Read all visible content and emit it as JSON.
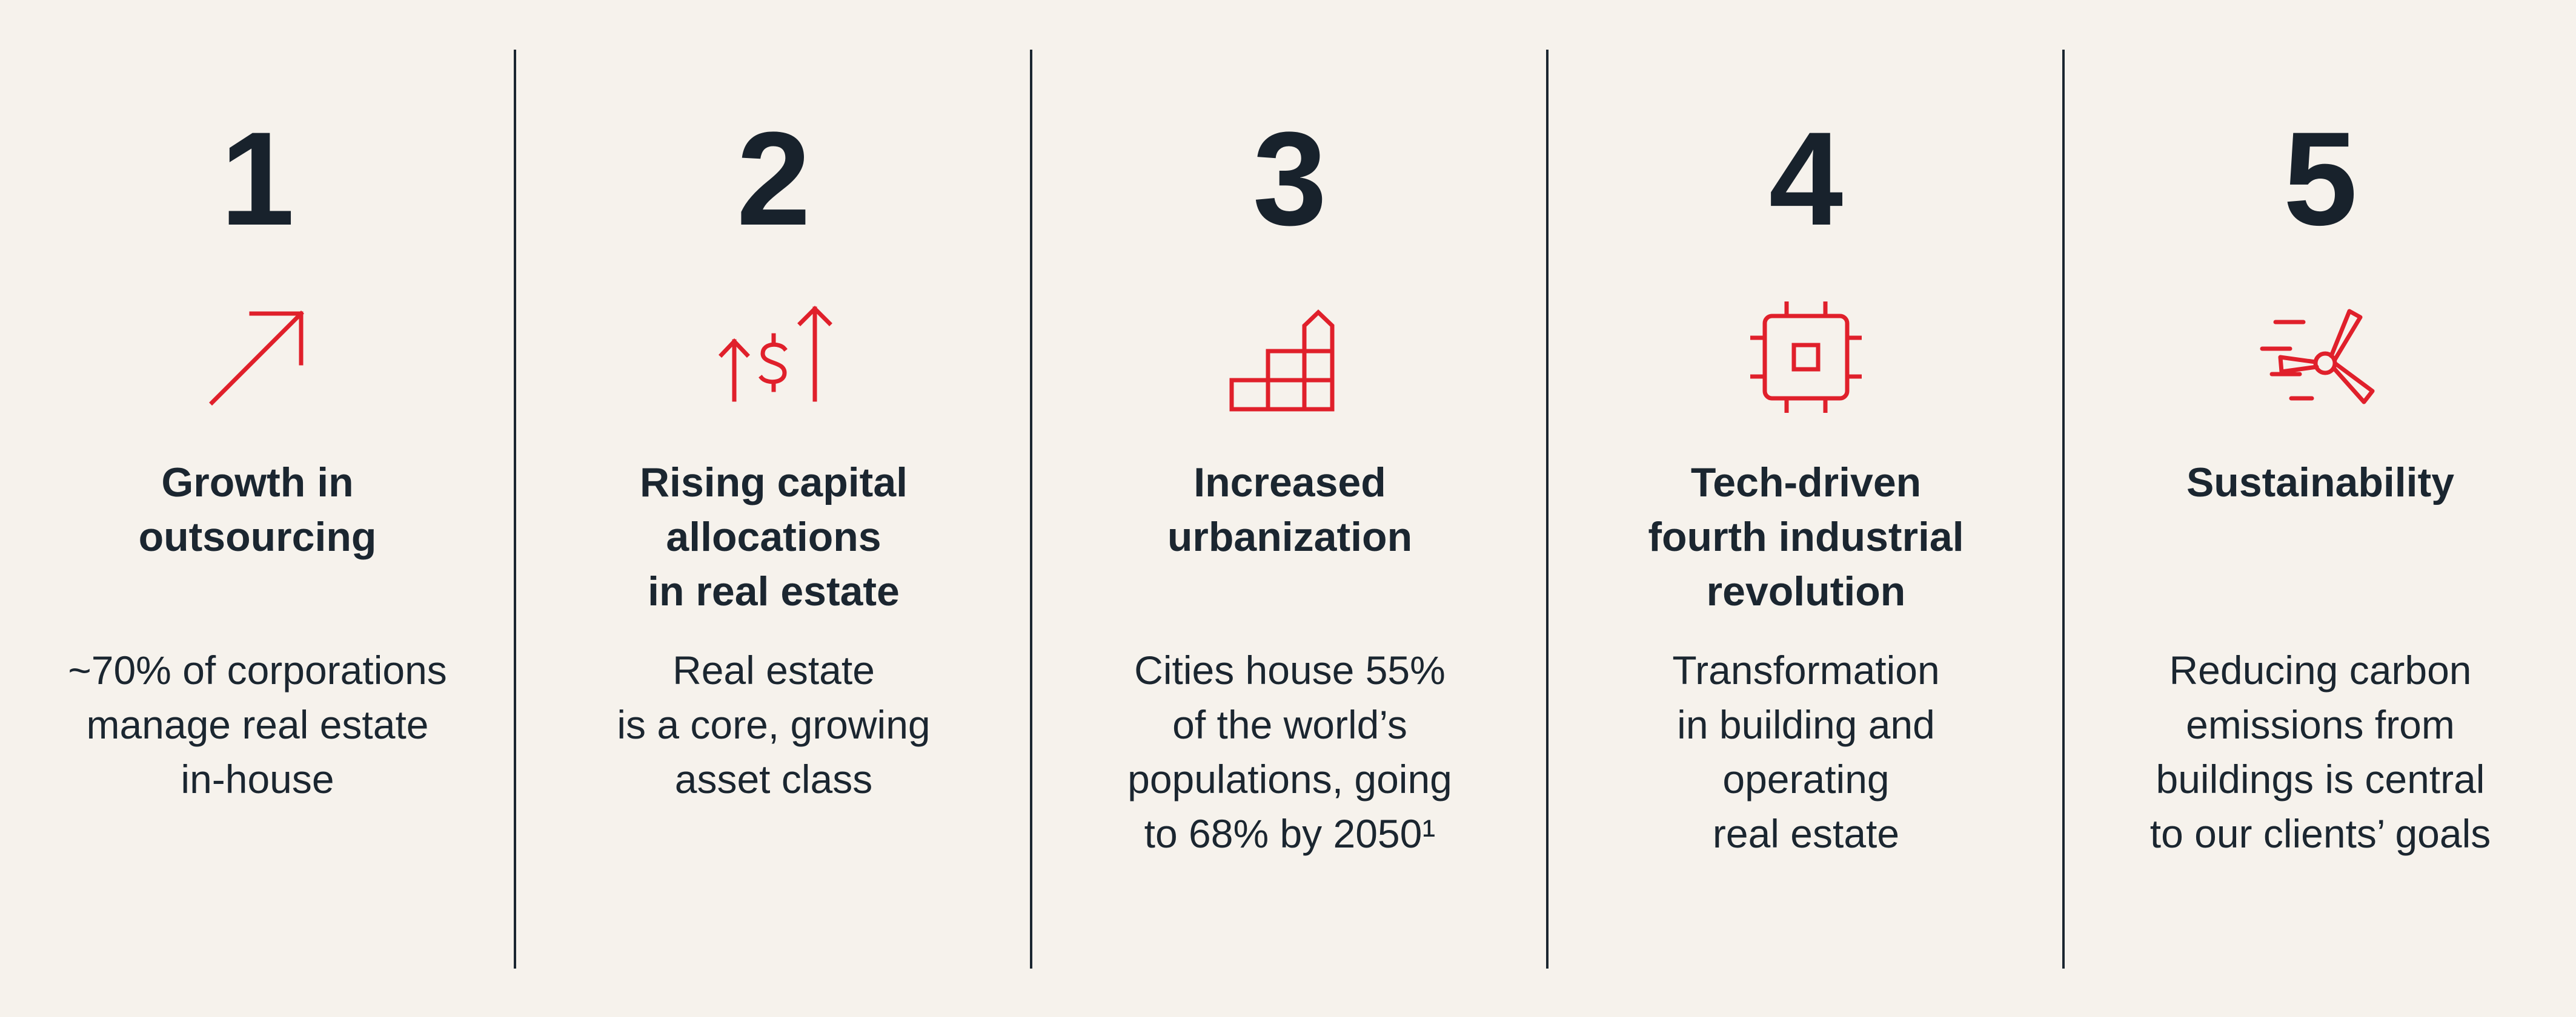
{
  "colors": {
    "background": "#f6f2ec",
    "text": "#1b2630",
    "accent": "#e0202b"
  },
  "pillars": [
    {
      "number": "1",
      "icon": "arrow-up-right-icon",
      "title_lines": [
        "Growth in",
        "outsourcing"
      ],
      "desc_lines": [
        "~70% of corporations",
        "manage real estate",
        "in-house"
      ]
    },
    {
      "number": "2",
      "icon": "rising-capital-icon",
      "title_lines": [
        "Rising capital",
        "allocations",
        "in real estate"
      ],
      "desc_lines": [
        "Real estate",
        "is a core, growing",
        "asset class"
      ]
    },
    {
      "number": "3",
      "icon": "buildings-icon",
      "title_lines": [
        "Increased",
        "urbanization"
      ],
      "desc_lines": [
        "Cities house 55%",
        "of the world’s",
        "populations, going",
        "to 68% by 2050¹"
      ]
    },
    {
      "number": "4",
      "icon": "microchip-icon",
      "title_lines": [
        "Tech-driven",
        "fourth industrial",
        "revolution"
      ],
      "desc_lines": [
        "Transformation",
        "in building and",
        "operating",
        "real estate"
      ]
    },
    {
      "number": "5",
      "icon": "wind-turbine-icon",
      "title_lines": [
        "Sustainability"
      ],
      "desc_lines": [
        "Reducing carbon",
        "emissions from",
        "buildings is central",
        "to our clients’ goals"
      ]
    }
  ]
}
